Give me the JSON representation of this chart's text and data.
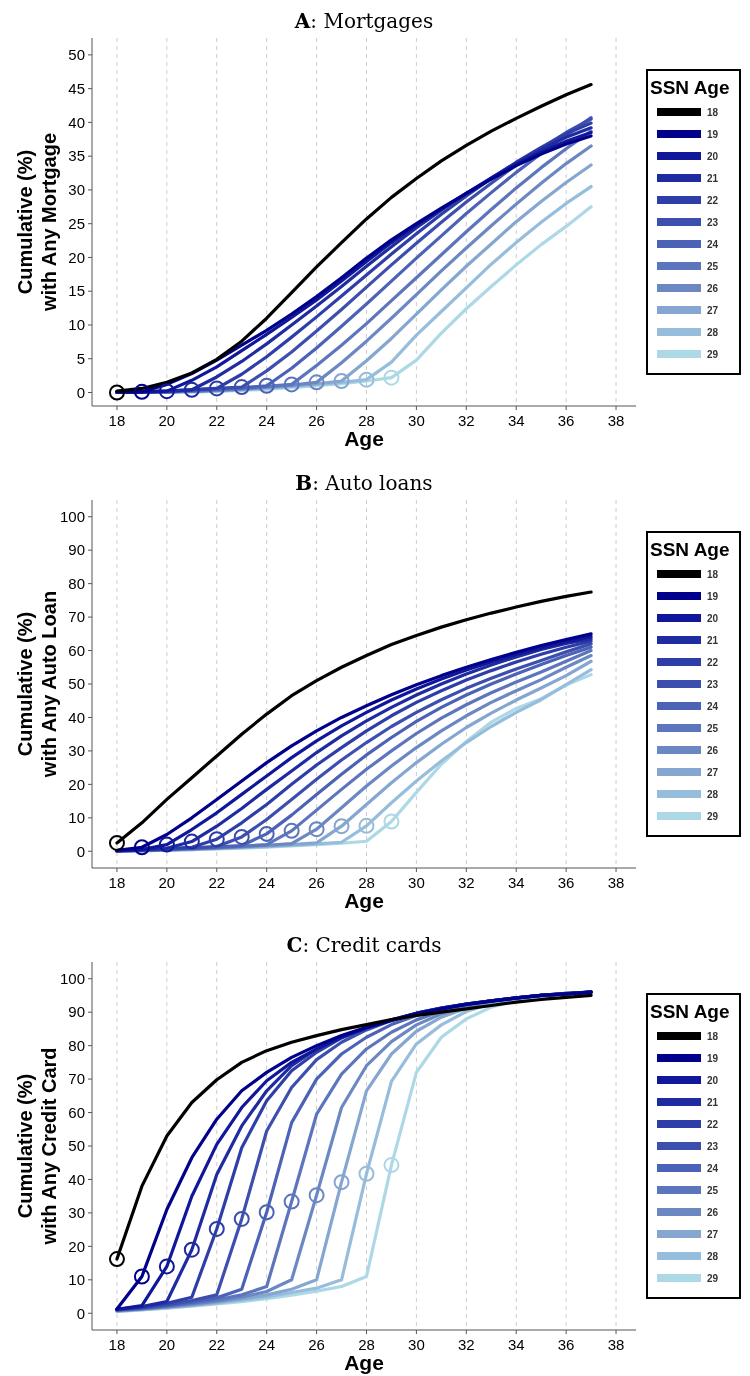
{
  "chart_data": [
    {
      "type": "line",
      "title": "A: Mortgages",
      "xlabel": "Age",
      "ylabel": "Cumulative (%)\nwith Any Mortgage",
      "legend_title": "SSN Age",
      "legend": "right",
      "grid": "x",
      "line_style": "solid",
      "xlim": [
        17,
        38.8
      ],
      "xticks": [
        18,
        20,
        22,
        24,
        26,
        28,
        30,
        32,
        34,
        36,
        38
      ],
      "ylim": [
        -2,
        52.5
      ],
      "yticks": [
        0,
        5,
        10,
        15,
        20,
        25,
        30,
        35,
        40,
        45,
        50
      ],
      "x": [
        18,
        19,
        20,
        21,
        22,
        23,
        24,
        25,
        26,
        27,
        28,
        29,
        30,
        31,
        32,
        33,
        34,
        35,
        36,
        37
      ],
      "series": [
        {
          "name": "18",
          "color": "#000000",
          "values": [
            0.2,
            0.6,
            1.5,
            2.9,
            4.9,
            7.6,
            11,
            14.8,
            18.6,
            22.2,
            25.7,
            28.9,
            31.7,
            34.3,
            36.6,
            38.7,
            40.6,
            42.4,
            44.1,
            45.6
          ]
        },
        {
          "name": "19",
          "color": "#00008b",
          "values": [
            0.1,
            0.1,
            1.2,
            2.8,
            4.8,
            7.0,
            9.2,
            11.6,
            14.2,
            17.0,
            19.9,
            22.6,
            25.0,
            27.3,
            29.5,
            31.6,
            33.6,
            35.3,
            36.8,
            38.0
          ]
        },
        {
          "name": "20",
          "color": "#10179a",
          "values": [
            0.1,
            0.1,
            0.2,
            1.8,
            3.8,
            6.2,
            8.6,
            11.1,
            13.7,
            16.5,
            19.4,
            22.2,
            24.8,
            27.2,
            29.5,
            31.7,
            33.8,
            35.6,
            37.2,
            38.5
          ]
        },
        {
          "name": "21",
          "color": "#1f2ba0",
          "values": [
            0,
            0.1,
            0.2,
            0.4,
            2.3,
            4.6,
            7.2,
            10.0,
            12.8,
            15.7,
            18.7,
            21.6,
            24.4,
            27.0,
            29.5,
            31.8,
            34.0,
            36.0,
            37.8,
            39.2
          ]
        },
        {
          "name": "22",
          "color": "#2e3ea8",
          "values": [
            0,
            0.1,
            0.2,
            0.4,
            0.6,
            2.7,
            5.3,
            8.2,
            11.2,
            14.3,
            17.4,
            20.5,
            23.5,
            26.4,
            29.1,
            31.7,
            34.1,
            36.3,
            38.3,
            39.9
          ]
        },
        {
          "name": "23",
          "color": "#3d4fae",
          "values": [
            0,
            0.1,
            0.2,
            0.4,
            0.6,
            0.8,
            3.2,
            6.0,
            9.1,
            12.3,
            15.6,
            18.9,
            22.1,
            25.2,
            28.2,
            31.0,
            33.7,
            36.2,
            38.5,
            40.5
          ]
        },
        {
          "name": "24",
          "color": "#4c62b6",
          "values": [
            0,
            0,
            0.1,
            0.3,
            0.5,
            0.7,
            1.0,
            3.6,
            6.6,
            9.8,
            13.1,
            16.5,
            19.9,
            23.2,
            26.5,
            29.6,
            32.6,
            35.4,
            38.1,
            40.7
          ]
        },
        {
          "name": "25",
          "color": "#5c75bd",
          "values": [
            0,
            0,
            0.1,
            0.2,
            0.4,
            0.6,
            0.9,
            1.2,
            4.0,
            7.0,
            10.2,
            13.6,
            17.0,
            20.4,
            23.8,
            27.1,
            30.3,
            33.3,
            36.1,
            38.7
          ]
        },
        {
          "name": "26",
          "color": "#6b88c3",
          "values": [
            0,
            0,
            0.1,
            0.2,
            0.3,
            0.5,
            0.8,
            1.1,
            1.5,
            4.4,
            7.6,
            11.0,
            14.5,
            18.0,
            21.4,
            24.7,
            27.9,
            31.0,
            33.9,
            36.5
          ]
        },
        {
          "name": "27",
          "color": "#84a6d0",
          "values": [
            0,
            0,
            0.1,
            0.2,
            0.3,
            0.5,
            0.7,
            1.0,
            1.3,
            1.7,
            4.7,
            8.0,
            11.6,
            15.2,
            18.7,
            22.0,
            25.3,
            28.3,
            31.1,
            33.7
          ]
        },
        {
          "name": "28",
          "color": "#97bddc",
          "values": [
            0,
            0,
            0.1,
            0.1,
            0.2,
            0.4,
            0.6,
            0.9,
            1.2,
            1.5,
            1.9,
            4.5,
            8.5,
            12.0,
            15.5,
            19.0,
            22.2,
            25.2,
            28.0,
            30.5
          ]
        },
        {
          "name": "29",
          "color": "#add8e6",
          "values": [
            0,
            0,
            0,
            0.1,
            0.2,
            0.3,
            0.5,
            0.7,
            1.0,
            1.3,
            1.7,
            2.2,
            4.8,
            8.8,
            12.4,
            15.7,
            18.9,
            21.9,
            24.6,
            27.5
          ]
        },
        {
          "type": "scatter",
          "marker": "circle",
          "x": [
            18,
            19,
            20,
            21,
            22,
            23,
            24,
            25,
            26,
            27,
            28,
            29
          ],
          "values": [
            0,
            0.1,
            0.2,
            0.4,
            0.6,
            0.8,
            1.0,
            1.2,
            1.5,
            1.7,
            1.9,
            2.2
          ],
          "colors": [
            "#000000",
            "#00008b",
            "#10179a",
            "#1f2ba0",
            "#2e3ea8",
            "#3d4fae",
            "#4c62b6",
            "#5c75bd",
            "#6b88c3",
            "#84a6d0",
            "#97bddc",
            "#add8e6"
          ]
        }
      ]
    },
    {
      "type": "line",
      "title": "B: Auto loans",
      "xlabel": "Age",
      "ylabel": "Cumulative (%)\nwith Any Auto Loan",
      "legend_title": "SSN Age",
      "legend": "right",
      "grid": "x",
      "line_style": "solid",
      "xlim": [
        17,
        38.8
      ],
      "xticks": [
        18,
        20,
        22,
        24,
        26,
        28,
        30,
        32,
        34,
        36,
        38
      ],
      "ylim": [
        -5,
        105
      ],
      "yticks": [
        0,
        10,
        20,
        30,
        40,
        50,
        60,
        70,
        80,
        90,
        100
      ],
      "x": [
        18,
        19,
        20,
        21,
        22,
        23,
        24,
        25,
        26,
        27,
        28,
        29,
        30,
        31,
        32,
        33,
        34,
        35,
        36,
        37
      ],
      "series": [
        {
          "name": "18",
          "color": "#000000",
          "values": [
            2.5,
            8.5,
            15.5,
            22,
            28.5,
            35,
            41,
            46.5,
            51,
            55,
            58.5,
            61.8,
            64.5,
            67,
            69.2,
            71.2,
            73,
            74.7,
            76.2,
            77.5
          ]
        },
        {
          "name": "19",
          "color": "#00008b",
          "values": [
            0.3,
            1.2,
            5,
            10,
            15.5,
            21,
            26.5,
            31.5,
            36,
            40,
            43.5,
            46.8,
            49.8,
            52.5,
            55,
            57.3,
            59.5,
            61.5,
            63.3,
            65
          ]
        },
        {
          "name": "20",
          "color": "#10179a",
          "values": [
            0.2,
            0.5,
            2.0,
            6.5,
            11.5,
            17,
            22.5,
            28,
            33,
            37.5,
            41.5,
            45.2,
            48.5,
            51.5,
            54.2,
            56.6,
            58.8,
            60.8,
            62.6,
            64.2
          ]
        },
        {
          "name": "21",
          "color": "#1f2ba0",
          "values": [
            0.2,
            0.5,
            0.9,
            2.9,
            7.5,
            12.8,
            18.5,
            24,
            29.5,
            34.5,
            39,
            43,
            46.7,
            50,
            53,
            55.7,
            58.1,
            60.3,
            62.1,
            63.5
          ]
        },
        {
          "name": "22",
          "color": "#2e3ea8",
          "values": [
            0.2,
            0.4,
            0.8,
            1.2,
            3.6,
            8.5,
            14,
            20,
            25.8,
            31,
            36,
            40.5,
            44.5,
            48,
            51.2,
            54,
            56.6,
            58.9,
            61,
            62.8
          ]
        },
        {
          "name": "23",
          "color": "#3d4fae",
          "values": [
            0.1,
            0.3,
            0.6,
            1.0,
            1.4,
            4.3,
            9.5,
            15.5,
            21.5,
            27.3,
            32.5,
            37.3,
            41.5,
            45.3,
            48.7,
            51.7,
            54.5,
            57,
            59.6,
            62
          ]
        },
        {
          "name": "24",
          "color": "#4c62b6",
          "values": [
            0.1,
            0.3,
            0.6,
            0.9,
            1.3,
            1.7,
            5.2,
            10.8,
            17,
            23,
            28.8,
            34,
            38.8,
            43,
            46.7,
            50,
            53,
            55.8,
            58.5,
            61
          ]
        },
        {
          "name": "25",
          "color": "#5c75bd",
          "values": [
            0.1,
            0.3,
            0.5,
            0.8,
            1.1,
            1.5,
            2.0,
            6.1,
            12.3,
            18.5,
            24.5,
            30,
            35.2,
            39.8,
            43.8,
            47.4,
            50.6,
            53.6,
            56.8,
            60
          ]
        },
        {
          "name": "26",
          "color": "#6b88c3",
          "values": [
            0.1,
            0.2,
            0.4,
            0.7,
            1.0,
            1.4,
            1.8,
            2.3,
            6.6,
            13,
            19.5,
            25.5,
            31,
            36,
            40.5,
            44.5,
            48,
            51.3,
            55,
            58.5
          ]
        },
        {
          "name": "27",
          "color": "#84a6d0",
          "values": [
            0.1,
            0.2,
            0.4,
            0.6,
            0.9,
            1.2,
            1.6,
            2.0,
            2.5,
            7.5,
            14,
            20.5,
            26.5,
            32,
            37,
            41.3,
            45.2,
            48.8,
            52.5,
            56.8
          ]
        },
        {
          "name": "28",
          "color": "#97bddc",
          "values": [
            0,
            0.2,
            0.3,
            0.5,
            0.8,
            1.1,
            1.4,
            1.8,
            2.2,
            2.7,
            7.6,
            14.5,
            21,
            27,
            32.5,
            37.3,
            41.5,
            45.3,
            49.8,
            54.3
          ]
        },
        {
          "name": "29",
          "color": "#add8e6",
          "values": [
            0,
            0.1,
            0.3,
            0.5,
            0.7,
            0.9,
            1.2,
            1.6,
            2.0,
            2.4,
            3.0,
            8.9,
            17.6,
            26,
            32.8,
            38.6,
            42.7,
            45.6,
            49.7,
            52.8
          ]
        },
        {
          "type": "scatter",
          "marker": "circle",
          "x": [
            18,
            19,
            20,
            21,
            22,
            23,
            24,
            25,
            26,
            27,
            28,
            29
          ],
          "values": [
            2.5,
            1.2,
            2.0,
            2.9,
            3.6,
            4.3,
            5.2,
            6.1,
            6.6,
            7.5,
            7.6,
            8.9
          ],
          "colors": [
            "#000000",
            "#00008b",
            "#10179a",
            "#1f2ba0",
            "#2e3ea8",
            "#3d4fae",
            "#4c62b6",
            "#5c75bd",
            "#6b88c3",
            "#84a6d0",
            "#97bddc",
            "#add8e6"
          ]
        }
      ]
    },
    {
      "type": "line",
      "title": "C: Credit cards",
      "xlabel": "Age",
      "ylabel": "Cumulative (%)\nwith Any Credit Card",
      "legend_title": "SSN Age",
      "legend": "right",
      "grid": "x",
      "line_style": "solid",
      "xlim": [
        17,
        38.8
      ],
      "xticks": [
        18,
        20,
        22,
        24,
        26,
        28,
        30,
        32,
        34,
        36,
        38
      ],
      "ylim": [
        -5,
        105
      ],
      "yticks": [
        0,
        10,
        20,
        30,
        40,
        50,
        60,
        70,
        80,
        90,
        100
      ],
      "x": [
        18,
        19,
        20,
        21,
        22,
        23,
        24,
        25,
        26,
        27,
        28,
        29,
        30,
        31,
        32,
        33,
        34,
        35,
        36,
        37
      ],
      "series": [
        {
          "name": "18",
          "color": "#000000",
          "values": [
            16.2,
            38,
            53,
            63,
            69.8,
            75,
            78.5,
            81,
            83,
            84.8,
            86.3,
            87.8,
            89,
            90,
            91,
            92,
            93,
            93.8,
            94.4,
            95
          ]
        },
        {
          "name": "19",
          "color": "#00008b",
          "values": [
            1.3,
            11,
            31,
            46.5,
            58,
            66.5,
            72,
            76.5,
            80,
            83,
            85.5,
            87.5,
            89.5,
            91,
            92.3,
            93.3,
            94.2,
            95,
            95.5,
            96
          ]
        },
        {
          "name": "20",
          "color": "#10179a",
          "values": [
            1.2,
            2.3,
            14,
            35,
            50.5,
            61.5,
            69.5,
            75,
            79,
            82.5,
            85.3,
            87.6,
            89.6,
            91.1,
            92.4,
            93.4,
            94.3,
            95,
            95.5,
            96
          ]
        },
        {
          "name": "21",
          "color": "#1f2ba0",
          "values": [
            1.2,
            2,
            3.5,
            19,
            41.5,
            56,
            66.5,
            74,
            79,
            82.5,
            85.3,
            87.7,
            89.7,
            91.2,
            92.4,
            93.4,
            94.3,
            95,
            95.5,
            96
          ]
        },
        {
          "name": "22",
          "color": "#2e3ea8",
          "values": [
            1.1,
            1.8,
            3,
            4.8,
            25.2,
            49.5,
            63.5,
            72.5,
            78,
            82.3,
            85.3,
            87.7,
            89.7,
            91.2,
            92.4,
            93.4,
            94.3,
            95,
            95.5,
            96
          ]
        },
        {
          "name": "23",
          "color": "#3d4fae",
          "values": [
            1.0,
            1.6,
            2.6,
            3.8,
            5.5,
            28.2,
            54.5,
            67.5,
            75.8,
            81,
            84.7,
            87.5,
            89.6,
            91.2,
            92.4,
            93.4,
            94.3,
            95,
            95.5,
            96
          ]
        },
        {
          "name": "24",
          "color": "#4c62b6",
          "values": [
            1.0,
            1.5,
            2.3,
            3.3,
            4.6,
            7.2,
            30.2,
            57,
            70,
            77.5,
            82.5,
            86.3,
            89.0,
            90.9,
            92.3,
            93.4,
            94.3,
            95,
            95.6,
            96
          ]
        },
        {
          "name": "25",
          "color": "#5c75bd",
          "values": [
            0.9,
            1.4,
            2.1,
            3.0,
            4.0,
            5.5,
            8.0,
            33.4,
            59.5,
            71.5,
            79,
            84,
            87.7,
            90.3,
            92,
            93.3,
            94.3,
            95,
            95.6,
            96
          ]
        },
        {
          "name": "26",
          "color": "#6b88c3",
          "values": [
            0.8,
            1.3,
            1.9,
            2.7,
            3.6,
            4.8,
            6.5,
            10,
            35.3,
            61.5,
            74,
            81.2,
            86.2,
            89.5,
            91.7,
            93.2,
            94.2,
            95,
            95.6,
            96
          ]
        },
        {
          "name": "27",
          "color": "#84a6d0",
          "values": [
            0.7,
            1.2,
            1.8,
            2.5,
            3.3,
            4.3,
            5.5,
            7.2,
            10,
            39.2,
            66.5,
            77.5,
            84.3,
            88.5,
            91.2,
            93,
            94.2,
            95,
            95.6,
            96
          ]
        },
        {
          "name": "28",
          "color": "#97bddc",
          "values": [
            0.6,
            1.1,
            1.6,
            2.3,
            3.0,
            3.9,
            4.9,
            6.2,
            7.5,
            10,
            41.7,
            69.3,
            80.5,
            86.2,
            90.2,
            92.6,
            94,
            95,
            95.6,
            96
          ]
        },
        {
          "name": "29",
          "color": "#add8e6",
          "values": [
            0.5,
            1.0,
            1.5,
            2.1,
            2.8,
            3.5,
            4.4,
            5.4,
            6.6,
            8,
            11,
            44.3,
            72,
            82.5,
            88,
            91.5,
            93.5,
            94.8,
            95.5,
            96
          ]
        },
        {
          "type": "scatter",
          "marker": "circle",
          "x": [
            18,
            19,
            20,
            21,
            22,
            23,
            24,
            25,
            26,
            27,
            28,
            29
          ],
          "values": [
            16.2,
            11,
            14,
            19,
            25.2,
            28.2,
            30.2,
            33.4,
            35.3,
            39.2,
            41.7,
            44.3
          ],
          "colors": [
            "#000000",
            "#00008b",
            "#10179a",
            "#1f2ba0",
            "#2e3ea8",
            "#3d4fae",
            "#4c62b6",
            "#5c75bd",
            "#6b88c3",
            "#84a6d0",
            "#97bddc",
            "#add8e6"
          ]
        }
      ]
    }
  ]
}
